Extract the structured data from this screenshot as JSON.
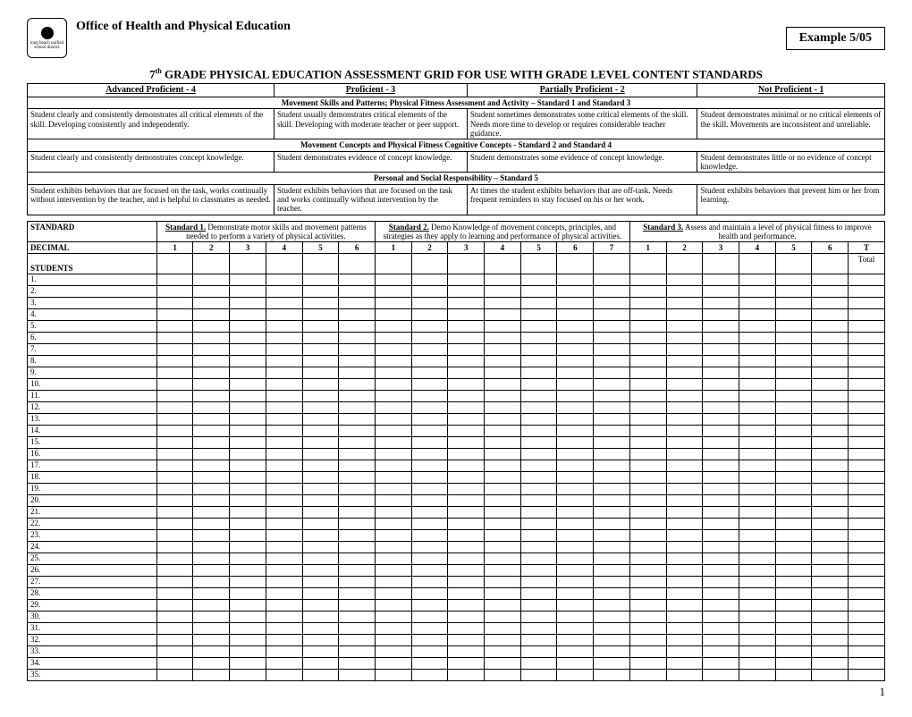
{
  "header": {
    "logo_text": "long beach unified school district",
    "office_title": "Office of Health and Physical Education",
    "example_label": "Example 5/05"
  },
  "main_title_prefix": "7",
  "main_title_sup": "th",
  "main_title_rest": " GRADE PHYSICAL EDUCATION ASSESSMENT GRID FOR USE WITH GRADE LEVEL CONTENT STANDARDS",
  "rubric": {
    "levels": [
      "Advanced Proficient  -  4",
      "Proficient  -  3",
      "Partially Proficient  -  2",
      "Not Proficient  -  1"
    ],
    "band1_title": "Movement Skills and Patterns; Physical Fitness Assessment and Activity – Standard 1 and Standard 3",
    "band1": [
      "Student clearly and consistently demonstrates all critical elements of the skill. Developing consistently and independently.",
      "Student usually demonstrates critical elements of the skill. Developing with moderate teacher or peer support.",
      "Student sometimes demonstrates some critical elements of the skill.  Needs more time to develop or requires considerable teacher guidance.",
      "Student demonstrates minimal or no critical elements of the skill.  Movements are inconsistent and unreliable."
    ],
    "band2_title": "Movement Concepts and Physical Fitness Cognitive Concepts -  Standard 2 and Standard 4",
    "band2": [
      "Student clearly and consistently demonstrates concept knowledge.",
      "Student demonstrates evidence of concept knowledge.",
      "Student demonstrates some evidence of concept knowledge.",
      "Student demonstrates little or no evidence of concept knowledge."
    ],
    "band3_title": "Personal and Social Responsibility – Standard 5",
    "band3": [
      "Student exhibits behaviors that are focused on the task, works continually without intervention by the teacher, and is helpful to classmates as needed.",
      "Student exhibits behaviors that are focused on the task and works continually without intervention by the teacher.",
      "At times the student exhibits behaviors that are off-task. Needs frequent reminders to stay focused on his or her work.",
      "Student exhibits behaviors that prevent him or her from learning."
    ]
  },
  "standards": {
    "label": "STANDARD",
    "s1_label": "Standard 1.",
    "s1_text": "  Demonstrate motor skills and movement patterns needed to perform a variety of physical activities.",
    "s2_label": "Standard 2.",
    "s2_text": "  Demo Knowledge of movement concepts, principles, and strategies as they apply to learning and performance of physical activities.",
    "s3_label": "Standard 3.",
    "s3_text": " Assess and maintain a level of physical fitness to improve health and performance."
  },
  "decimal_label": "DECIMAL",
  "decimals_s1": [
    "1",
    "2",
    "3",
    "4",
    "5",
    "6"
  ],
  "decimals_s2": [
    "1",
    "2",
    "3",
    "4",
    "5",
    "6",
    "7"
  ],
  "decimals_s3": [
    "1",
    "2",
    "3",
    "4",
    "5",
    "6"
  ],
  "t_label": "T",
  "total_label": "Total",
  "students_label": "STUDENTS",
  "student_rows": [
    "1.",
    "2.",
    "3.",
    "4.",
    "5.",
    "6.",
    "7.",
    "8.",
    "9.",
    "10.",
    "11.",
    "12.",
    "13.",
    "14.",
    "15.",
    "16.",
    "17.",
    "18.",
    "19.",
    "20.",
    "21.",
    "22.",
    "23.",
    "24.",
    "25.",
    "26.",
    "27.",
    "28.",
    "29.",
    "30.",
    "31.",
    "32.",
    "33.",
    "34.",
    "35."
  ],
  "page_number": "1",
  "colors": {
    "border": "#000000",
    "bg": "#ffffff",
    "text": "#000000"
  }
}
